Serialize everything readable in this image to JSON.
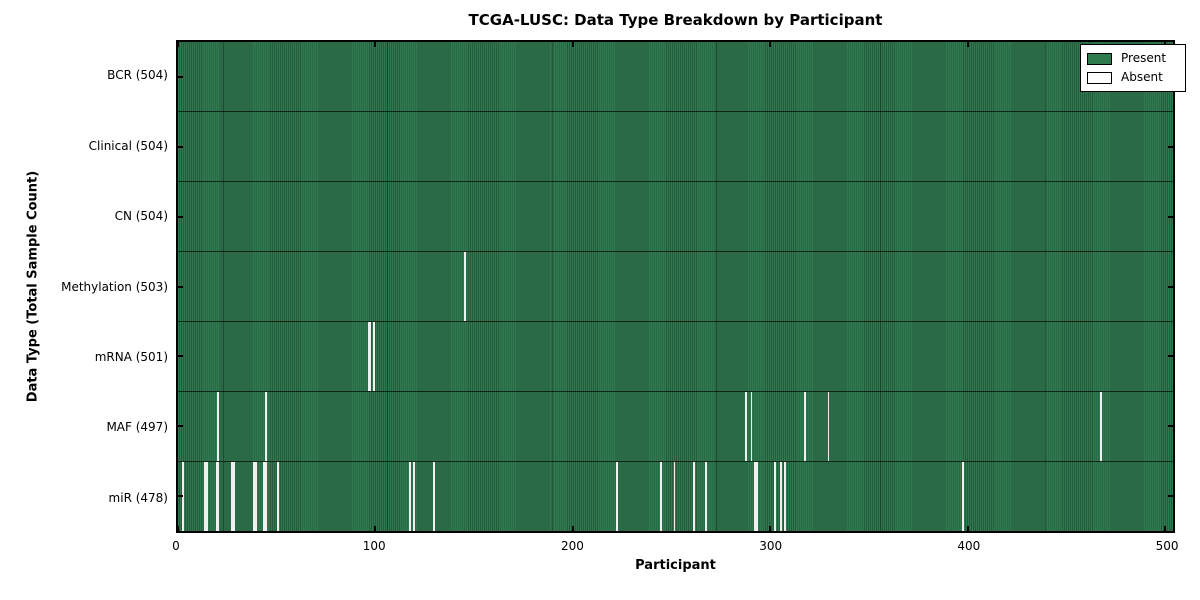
{
  "title": "TCGA-LUSC: Data Type Breakdown by Participant",
  "axes": {
    "xlabel": "Participant",
    "ylabel": "Data Type (Total Sample Count)"
  },
  "legend": {
    "items": [
      {
        "label": "Present",
        "color": "#2e7b50"
      },
      {
        "label": "Absent",
        "color": "#ffffff"
      }
    ]
  },
  "colors": {
    "present_fill": "#30794e",
    "present_stripe": "#245c3d",
    "absent_fill": "#f0f0f0",
    "frame": "#000000"
  },
  "chart_data": {
    "type": "heatmap",
    "title": "TCGA-LUSC: Data Type Breakdown by Participant",
    "xlabel": "Participant",
    "ylabel": "Data Type (Total Sample Count)",
    "x_range": [
      0,
      504
    ],
    "x_ticks": [
      0,
      100,
      200,
      300,
      400,
      500
    ],
    "total_participants": 504,
    "legend": [
      "Present",
      "Absent"
    ],
    "legend_position": "upper right",
    "rows": [
      {
        "label": "BCR (504)",
        "data_type": "BCR",
        "present_count": 504,
        "absent_participants": []
      },
      {
        "label": "Clinical (504)",
        "data_type": "Clinical",
        "present_count": 504,
        "absent_participants": []
      },
      {
        "label": "CN (504)",
        "data_type": "CN",
        "present_count": 504,
        "absent_participants": []
      },
      {
        "label": "Methylation (503)",
        "data_type": "Methylation",
        "present_count": 503,
        "absent_participants": [
          145
        ]
      },
      {
        "label": "mRNA (501)",
        "data_type": "mRNA",
        "present_count": 501,
        "absent_participants": [
          96,
          97,
          99
        ]
      },
      {
        "label": "MAF (497)",
        "data_type": "MAF",
        "present_count": 497,
        "absent_participants": [
          20,
          44,
          287,
          290,
          317,
          329,
          467
        ]
      },
      {
        "label": "miR (478)",
        "data_type": "miR",
        "present_count": 478,
        "absent_participants": [
          2,
          13,
          14,
          19,
          20,
          27,
          28,
          38,
          39,
          43,
          44,
          50,
          117,
          119,
          129,
          222,
          244,
          251,
          261,
          267,
          292,
          293,
          302,
          305,
          307,
          397
        ]
      }
    ]
  }
}
